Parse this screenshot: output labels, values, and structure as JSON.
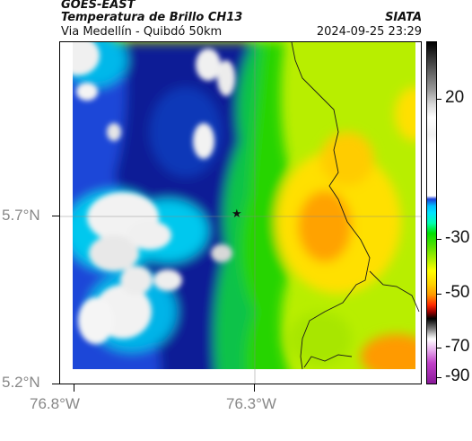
{
  "header": {
    "satellite": "GOES-EAST",
    "product": "Temperatura de Brillo CH13",
    "organization": "SIATA",
    "region": "Via Medellín - Quibdó 50km",
    "timestamp": "2024-09-25 23:29"
  },
  "map": {
    "y_axis_labels": [
      "5.7°N",
      "5.2°N"
    ],
    "x_axis_labels": [
      "76.8°W",
      "76.3°W"
    ],
    "marker_icon": "star-icon"
  },
  "colorbar": {
    "tick_labels": [
      "20",
      "-30",
      "-50",
      "-70",
      "-90"
    ]
  },
  "colors": {
    "cold_cloud_white": "#f0f0f0",
    "deep_blue": "#0a1e96",
    "cyan": "#00ccee",
    "green": "#22cc00",
    "yellow": "#f4f400",
    "orange": "#ff9a00"
  }
}
